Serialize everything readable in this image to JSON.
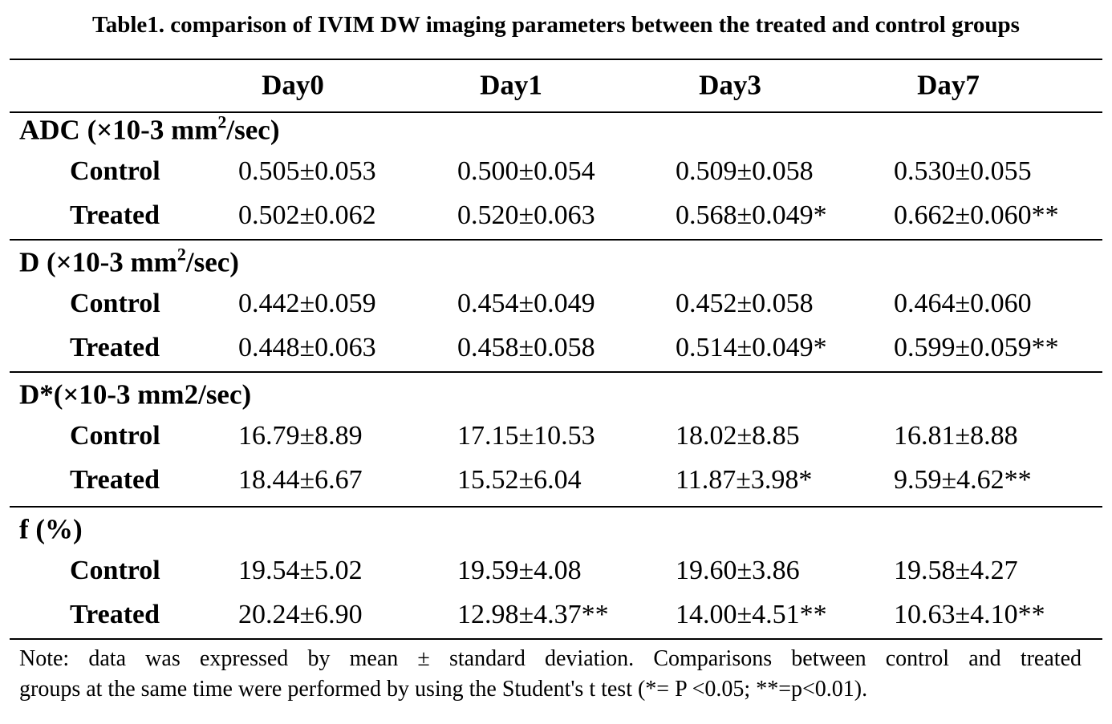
{
  "title": "Table1. comparison of IVIM DW imaging parameters between the treated and control groups",
  "columns": [
    "Day0",
    "Day1",
    "Day3",
    "Day7"
  ],
  "groups": [
    {
      "label": "ADC (×10-3 mm",
      "label_sup": "2",
      "label_tail": "/sec)",
      "rows": [
        {
          "name": "Control",
          "cells": [
            "0.505±0.053",
            "0.500±0.054",
            "0.509±0.058",
            "0.530±0.055"
          ]
        },
        {
          "name": "Treated",
          "cells": [
            "0.502±0.062",
            "0.520±0.063",
            "0.568±0.049*",
            "0.662±0.060**"
          ]
        }
      ]
    },
    {
      "label": "D (×10-3 mm",
      "label_sup": "2",
      "label_tail": "/sec)",
      "rows": [
        {
          "name": "Control",
          "cells": [
            "0.442±0.059",
            "0.454±0.049",
            "0.452±0.058",
            "0.464±0.060"
          ]
        },
        {
          "name": "Treated",
          "cells": [
            "0.448±0.063",
            "0.458±0.058",
            "0.514±0.049*",
            "0.599±0.059**"
          ]
        }
      ]
    },
    {
      "label": "D*(×10-3 mm2/sec)",
      "rows": [
        {
          "name": "Control",
          "cells": [
            "16.79±8.89",
            "17.15±10.53",
            "18.02±8.85",
            "16.81±8.88"
          ]
        },
        {
          "name": "Treated",
          "cells": [
            "18.44±6.67",
            "15.52±6.04",
            "11.87±3.98*",
            "9.59±4.62**"
          ]
        }
      ]
    },
    {
      "label": "f (%)",
      "rows": [
        {
          "name": "Control",
          "cells": [
            "19.54±5.02",
            "19.59±4.08",
            "19.60±3.86",
            "19.58±4.27"
          ]
        },
        {
          "name": "Treated",
          "cells": [
            "20.24±6.90",
            "12.98±4.37**",
            "14.00±4.51**",
            "10.63±4.10**"
          ]
        }
      ]
    }
  ],
  "note": {
    "lines": [
      "Note: data was expressed by mean ± standard deviation. Comparisons between control and treated",
      "groups at the same time were performed by using the Student's t test (*= P <0.05; **=p<0.01)."
    ]
  }
}
